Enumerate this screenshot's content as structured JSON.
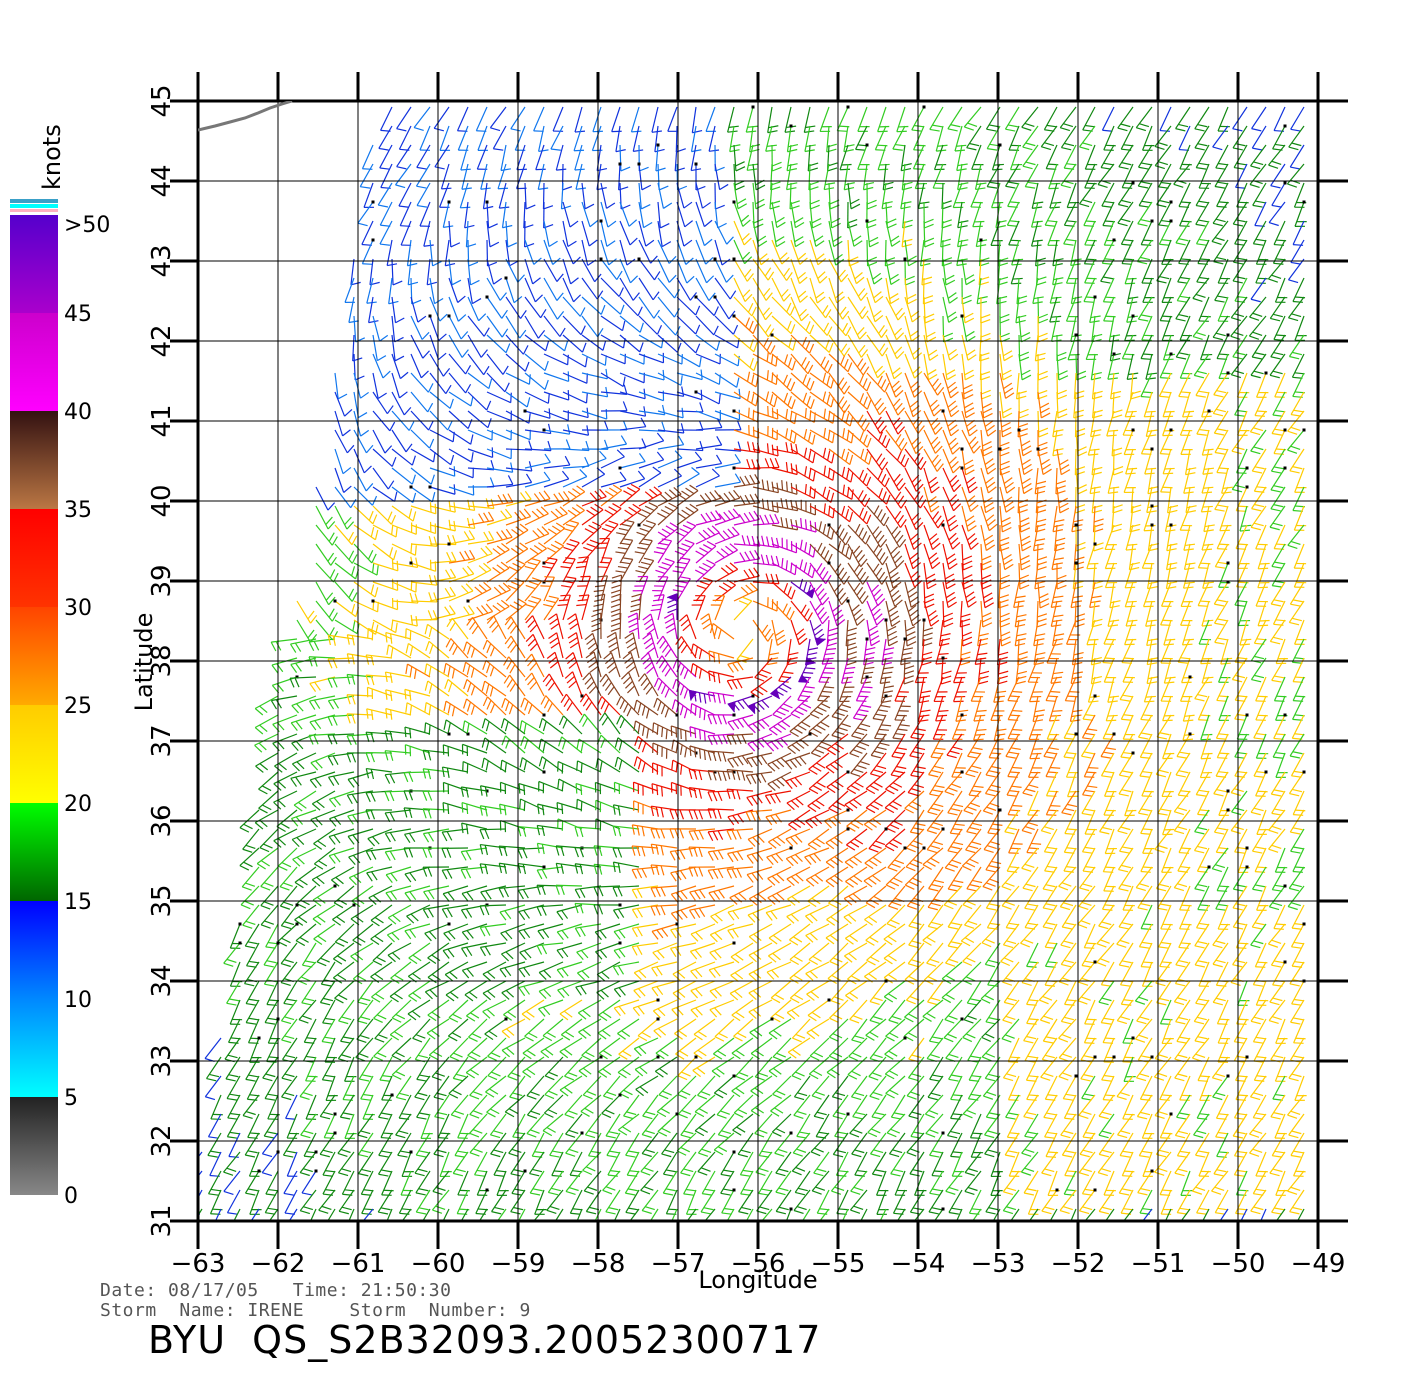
{
  "axes": {
    "xlabel": "Longitude",
    "ylabel": "Latitude",
    "lon_range": [
      -63,
      -49
    ],
    "lat_range": [
      31,
      45
    ],
    "lon_ticks": [
      "−63",
      "−62",
      "−61",
      "−60",
      "−59",
      "−58",
      "−57",
      "−56",
      "−55",
      "−54",
      "−53",
      "−52",
      "−51",
      "−50",
      "−49"
    ],
    "lat_ticks": [
      "31",
      "32",
      "33",
      "34",
      "35",
      "36",
      "37",
      "38",
      "39",
      "40",
      "41",
      "42",
      "43",
      "44",
      "45"
    ]
  },
  "colorbar": {
    "title": "knots",
    "labels": [
      ">50",
      "45",
      "40",
      "35",
      "30",
      "25",
      "20",
      "15",
      "10",
      "5",
      "0"
    ],
    "bands": [
      {
        "from": 0,
        "to": 5,
        "colors": [
          "#888888",
          "#222222"
        ]
      },
      {
        "from": 5,
        "to": 10,
        "colors": [
          "#00ffff",
          "#0088ff"
        ]
      },
      {
        "from": 10,
        "to": 15,
        "colors": [
          "#0088ff",
          "#0000ff"
        ]
      },
      {
        "from": 15,
        "to": 20,
        "colors": [
          "#006600",
          "#00ff00"
        ]
      },
      {
        "from": 20,
        "to": 25,
        "colors": [
          "#ffff00",
          "#ffcc00"
        ]
      },
      {
        "from": 25,
        "to": 30,
        "colors": [
          "#ffaa00",
          "#ff4400"
        ]
      },
      {
        "from": 30,
        "to": 35,
        "colors": [
          "#ff3300",
          "#ff0000"
        ]
      },
      {
        "from": 35,
        "to": 40,
        "colors": [
          "#bb7744",
          "#331111"
        ]
      },
      {
        "from": 40,
        "to": 45,
        "colors": [
          "#ff00ff",
          "#cc00cc"
        ]
      },
      {
        "from": 45,
        "to": 50,
        "colors": [
          "#aa00cc",
          "#5500cc"
        ]
      }
    ]
  },
  "storm": {
    "center_lon": -56.2,
    "center_lat": 38.4,
    "date": "08/17/05",
    "time": "21:50:30",
    "name": "IRENE",
    "number": "9"
  },
  "info": {
    "line1": "Date: 08/17/05   Time: 21:50:30",
    "line2": "Storm  Name: IRENE    Storm  Number: 9",
    "product": "BYU  QS_S2B32093.20052300717"
  }
}
